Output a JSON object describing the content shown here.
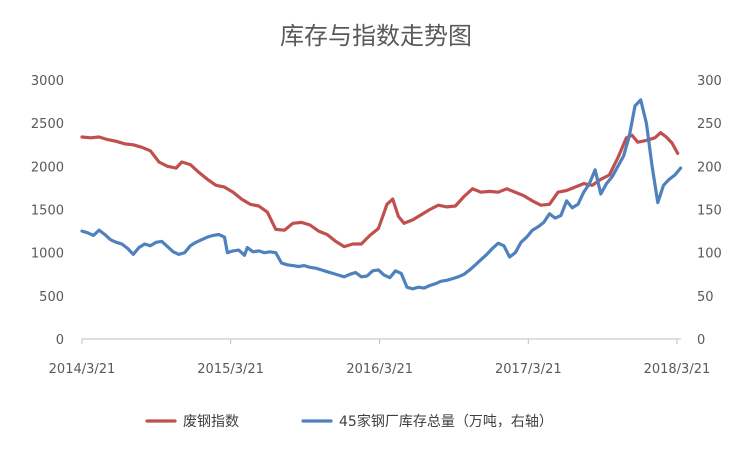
{
  "chart_data": {
    "type": "line",
    "title": "库存与指数走势图",
    "x_tick_labels": [
      "2014/3/21",
      "2015/3/21",
      "2016/3/21",
      "2017/3/21",
      "2018/3/21"
    ],
    "x_range": [
      "2014-03-21",
      "2018-03-31"
    ],
    "y_left": {
      "ticks": [
        "0",
        "500",
        "1000",
        "1500",
        "2000",
        "2500",
        "3000"
      ],
      "range": [
        0,
        3000
      ]
    },
    "y_right": {
      "ticks": [
        "0",
        "50",
        "100",
        "150",
        "200",
        "250",
        "300"
      ],
      "range": [
        0,
        300
      ]
    },
    "grid": false,
    "legend_position": "bottom",
    "series": [
      {
        "name": "废钢指数",
        "axis": "left",
        "color": "#c0504d",
        "points": [
          [
            "2014-03-21",
            2340
          ],
          [
            "2014-04-11",
            2330
          ],
          [
            "2014-05-02",
            2340
          ],
          [
            "2014-05-23",
            2310
          ],
          [
            "2014-06-13",
            2290
          ],
          [
            "2014-07-04",
            2260
          ],
          [
            "2014-07-25",
            2250
          ],
          [
            "2014-08-15",
            2220
          ],
          [
            "2014-09-05",
            2180
          ],
          [
            "2014-09-26",
            2050
          ],
          [
            "2014-10-17",
            2000
          ],
          [
            "2014-11-07",
            1980
          ],
          [
            "2014-11-21",
            2050
          ],
          [
            "2014-12-12",
            2020
          ],
          [
            "2015-01-02",
            1930
          ],
          [
            "2015-01-23",
            1850
          ],
          [
            "2015-02-13",
            1780
          ],
          [
            "2015-03-06",
            1760
          ],
          [
            "2015-03-27",
            1700
          ],
          [
            "2015-04-17",
            1620
          ],
          [
            "2015-05-08",
            1560
          ],
          [
            "2015-05-29",
            1540
          ],
          [
            "2015-06-19",
            1470
          ],
          [
            "2015-07-10",
            1270
          ],
          [
            "2015-07-31",
            1260
          ],
          [
            "2015-08-21",
            1340
          ],
          [
            "2015-09-11",
            1350
          ],
          [
            "2015-10-02",
            1320
          ],
          [
            "2015-10-23",
            1250
          ],
          [
            "2015-11-13",
            1210
          ],
          [
            "2015-12-04",
            1130
          ],
          [
            "2015-12-25",
            1070
          ],
          [
            "2016-01-15",
            1100
          ],
          [
            "2016-02-05",
            1100
          ],
          [
            "2016-02-26",
            1200
          ],
          [
            "2016-03-18",
            1280
          ],
          [
            "2016-04-08",
            1560
          ],
          [
            "2016-04-22",
            1620
          ],
          [
            "2016-05-06",
            1420
          ],
          [
            "2016-05-20",
            1340
          ],
          [
            "2016-06-10",
            1380
          ],
          [
            "2016-07-01",
            1440
          ],
          [
            "2016-07-22",
            1500
          ],
          [
            "2016-08-12",
            1550
          ],
          [
            "2016-09-02",
            1530
          ],
          [
            "2016-09-23",
            1540
          ],
          [
            "2016-10-14",
            1650
          ],
          [
            "2016-11-04",
            1740
          ],
          [
            "2016-11-25",
            1700
          ],
          [
            "2016-12-16",
            1710
          ],
          [
            "2017-01-06",
            1700
          ],
          [
            "2017-01-27",
            1740
          ],
          [
            "2017-02-17",
            1700
          ],
          [
            "2017-03-10",
            1660
          ],
          [
            "2017-03-31",
            1600
          ],
          [
            "2017-04-21",
            1550
          ],
          [
            "2017-05-12",
            1560
          ],
          [
            "2017-06-02",
            1700
          ],
          [
            "2017-06-23",
            1720
          ],
          [
            "2017-07-14",
            1760
          ],
          [
            "2017-08-04",
            1800
          ],
          [
            "2017-08-25",
            1780
          ],
          [
            "2017-09-15",
            1850
          ],
          [
            "2017-10-06",
            1900
          ],
          [
            "2017-10-27",
            2100
          ],
          [
            "2017-11-17",
            2330
          ],
          [
            "2017-12-01",
            2360
          ],
          [
            "2017-12-15",
            2280
          ],
          [
            "2018-01-05",
            2300
          ],
          [
            "2018-01-26",
            2330
          ],
          [
            "2018-02-09",
            2390
          ],
          [
            "2018-02-23",
            2340
          ],
          [
            "2018-03-09",
            2270
          ],
          [
            "2018-03-23",
            2150
          ]
        ]
      },
      {
        "name": "45家钢厂库存总量（万吨，右轴）",
        "axis": "right",
        "color": "#4f81bd",
        "points": [
          [
            "2014-03-21",
            125
          ],
          [
            "2014-04-04",
            123
          ],
          [
            "2014-04-18",
            120
          ],
          [
            "2014-05-02",
            126
          ],
          [
            "2014-05-16",
            121
          ],
          [
            "2014-05-30",
            115
          ],
          [
            "2014-06-13",
            112
          ],
          [
            "2014-06-27",
            110
          ],
          [
            "2014-07-11",
            105
          ],
          [
            "2014-07-25",
            98
          ],
          [
            "2014-08-08",
            106
          ],
          [
            "2014-08-22",
            110
          ],
          [
            "2014-09-05",
            108
          ],
          [
            "2014-09-19",
            112
          ],
          [
            "2014-10-03",
            113
          ],
          [
            "2014-10-17",
            107
          ],
          [
            "2014-10-31",
            101
          ],
          [
            "2014-11-14",
            98
          ],
          [
            "2014-11-28",
            100
          ],
          [
            "2014-12-12",
            108
          ],
          [
            "2014-12-26",
            112
          ],
          [
            "2015-01-09",
            115
          ],
          [
            "2015-01-23",
            118
          ],
          [
            "2015-02-06",
            120
          ],
          [
            "2015-02-20",
            121
          ],
          [
            "2015-03-06",
            118
          ],
          [
            "2015-03-13",
            100
          ],
          [
            "2015-03-27",
            102
          ],
          [
            "2015-04-10",
            103
          ],
          [
            "2015-04-24",
            97
          ],
          [
            "2015-05-01",
            106
          ],
          [
            "2015-05-15",
            101
          ],
          [
            "2015-05-29",
            102
          ],
          [
            "2015-06-12",
            100
          ],
          [
            "2015-06-26",
            101
          ],
          [
            "2015-07-10",
            100
          ],
          [
            "2015-07-24",
            88
          ],
          [
            "2015-08-07",
            86
          ],
          [
            "2015-08-21",
            85
          ],
          [
            "2015-09-04",
            84
          ],
          [
            "2015-09-18",
            85
          ],
          [
            "2015-10-02",
            83
          ],
          [
            "2015-10-16",
            82
          ],
          [
            "2015-10-30",
            80
          ],
          [
            "2015-11-13",
            78
          ],
          [
            "2015-11-27",
            76
          ],
          [
            "2015-12-11",
            74
          ],
          [
            "2015-12-25",
            72
          ],
          [
            "2016-01-08",
            75
          ],
          [
            "2016-01-22",
            77
          ],
          [
            "2016-02-05",
            72
          ],
          [
            "2016-02-19",
            73
          ],
          [
            "2016-03-04",
            79
          ],
          [
            "2016-03-18",
            80
          ],
          [
            "2016-04-01",
            74
          ],
          [
            "2016-04-15",
            71
          ],
          [
            "2016-04-29",
            79
          ],
          [
            "2016-05-13",
            76
          ],
          [
            "2016-05-27",
            60
          ],
          [
            "2016-06-10",
            58
          ],
          [
            "2016-06-24",
            60
          ],
          [
            "2016-07-08",
            59
          ],
          [
            "2016-07-22",
            62
          ],
          [
            "2016-08-05",
            64
          ],
          [
            "2016-08-19",
            67
          ],
          [
            "2016-09-02",
            68
          ],
          [
            "2016-09-16",
            70
          ],
          [
            "2016-09-30",
            72
          ],
          [
            "2016-10-14",
            75
          ],
          [
            "2016-10-28",
            80
          ],
          [
            "2016-11-11",
            86
          ],
          [
            "2016-11-25",
            92
          ],
          [
            "2016-12-09",
            98
          ],
          [
            "2016-12-23",
            105
          ],
          [
            "2017-01-06",
            111
          ],
          [
            "2017-01-20",
            108
          ],
          [
            "2017-02-03",
            95
          ],
          [
            "2017-02-17",
            100
          ],
          [
            "2017-03-03",
            112
          ],
          [
            "2017-03-17",
            118
          ],
          [
            "2017-03-31",
            126
          ],
          [
            "2017-04-14",
            130
          ],
          [
            "2017-04-28",
            135
          ],
          [
            "2017-05-12",
            145
          ],
          [
            "2017-05-26",
            140
          ],
          [
            "2017-06-09",
            143
          ],
          [
            "2017-06-23",
            160
          ],
          [
            "2017-07-07",
            152
          ],
          [
            "2017-07-21",
            156
          ],
          [
            "2017-08-04",
            170
          ],
          [
            "2017-08-18",
            180
          ],
          [
            "2017-09-01",
            196
          ],
          [
            "2017-09-15",
            168
          ],
          [
            "2017-09-29",
            180
          ],
          [
            "2017-10-13",
            188
          ],
          [
            "2017-10-27",
            200
          ],
          [
            "2017-11-10",
            212
          ],
          [
            "2017-11-24",
            235
          ],
          [
            "2017-12-08",
            270
          ],
          [
            "2017-12-22",
            277
          ],
          [
            "2018-01-05",
            250
          ],
          [
            "2018-01-19",
            200
          ],
          [
            "2018-02-02",
            158
          ],
          [
            "2018-02-16",
            178
          ],
          [
            "2018-03-02",
            185
          ],
          [
            "2018-03-16",
            190
          ],
          [
            "2018-03-30",
            198
          ]
        ]
      }
    ]
  }
}
